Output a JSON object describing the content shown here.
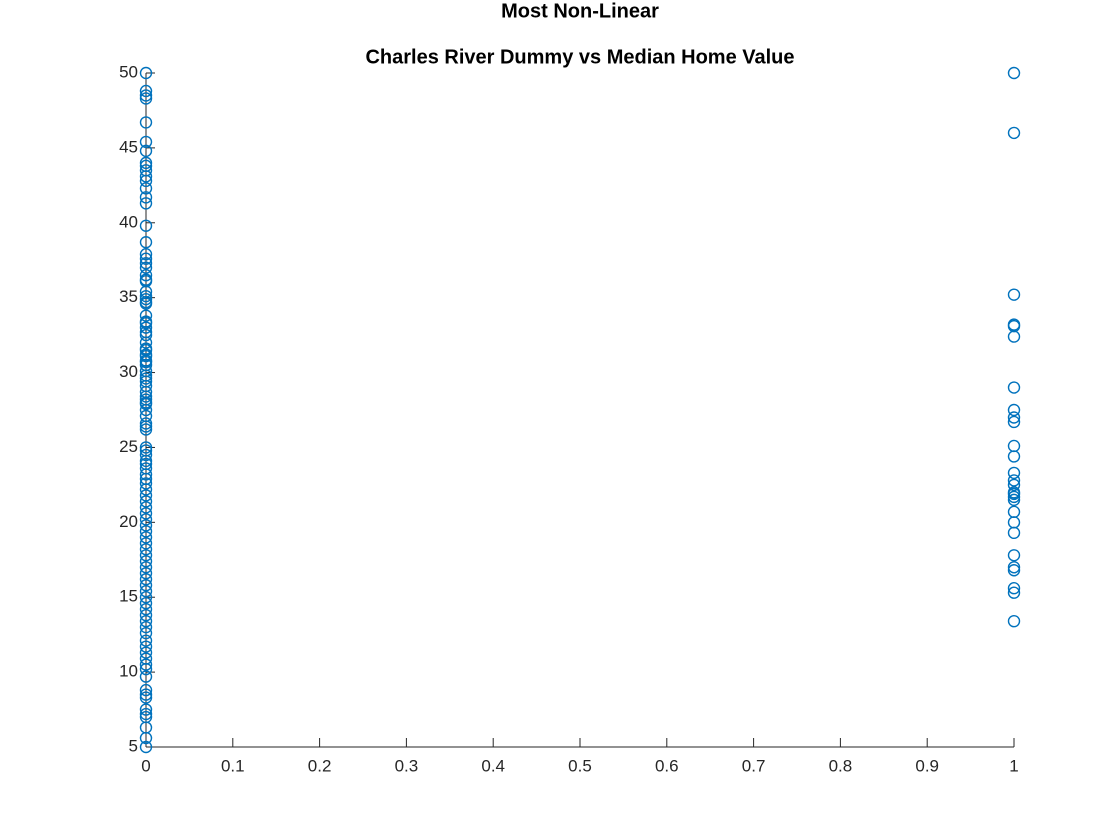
{
  "chart_data": {
    "type": "scatter",
    "title": "Most Non-Linear",
    "subtitle": "Charles River Dummy vs Median Home Value",
    "xlim": [
      0,
      1
    ],
    "xticks": [
      0,
      0.1,
      0.2,
      0.3,
      0.4,
      0.5,
      0.6,
      0.7,
      0.8,
      0.9,
      1
    ],
    "ylim": [
      5,
      50
    ],
    "yticks": [
      5,
      10,
      15,
      20,
      25,
      30,
      35,
      40,
      45,
      50
    ],
    "grid": false,
    "series": [
      {
        "color": "#0072bd",
        "x": [
          0,
          0,
          0,
          0,
          0,
          0,
          0,
          0,
          0,
          0,
          0,
          0,
          0,
          0,
          0,
          0,
          0,
          0,
          0,
          0,
          0,
          0,
          0,
          0,
          0,
          0,
          0,
          0,
          0,
          0,
          0,
          0,
          0,
          0,
          0,
          0,
          0,
          0,
          0,
          0,
          0,
          0,
          0,
          0,
          0,
          0,
          0,
          0,
          0,
          0,
          0,
          0,
          0,
          0,
          0,
          0,
          0,
          0,
          0,
          0,
          0,
          0,
          0,
          0,
          0,
          0,
          0,
          0,
          0,
          0,
          0,
          0,
          0,
          0,
          0,
          0,
          0,
          0,
          0,
          0,
          0,
          0,
          0,
          0,
          0,
          0,
          0,
          0,
          0,
          0,
          0,
          0,
          0,
          0,
          0,
          0,
          0,
          0,
          0,
          0,
          0,
          0,
          0,
          0,
          0,
          0,
          0,
          0
        ],
        "y": [
          50,
          48.8,
          48.5,
          48.3,
          46.7,
          45.4,
          44.8,
          44,
          43.8,
          43.5,
          43.1,
          42.8,
          42.3,
          41.7,
          41.3,
          39.8,
          38.7,
          37.9,
          37.6,
          37.3,
          37,
          36.5,
          36.2,
          36.1,
          35.4,
          35.1,
          34.9,
          34.7,
          34.6,
          33.8,
          33.4,
          33.3,
          33,
          32.7,
          32.5,
          32,
          31.6,
          31.5,
          31.2,
          31.1,
          30.8,
          30.7,
          30.5,
          30.1,
          29.8,
          29.6,
          29.4,
          29.1,
          28.7,
          28.4,
          28.2,
          28,
          27.9,
          27.5,
          27.1,
          26.6,
          26.4,
          26.2,
          25,
          24.8,
          24.5,
          24.1,
          23.9,
          23.6,
          23.2,
          22.9,
          22.6,
          22.2,
          21.8,
          21.4,
          21,
          20.6,
          20.2,
          19.8,
          19.4,
          19,
          18.6,
          18.2,
          17.8,
          17.4,
          17,
          16.6,
          16.2,
          15.8,
          15.4,
          15,
          14.6,
          14.2,
          13.8,
          13.4,
          13,
          12.6,
          12.1,
          11.7,
          11.3,
          10.9,
          10.5,
          10.2,
          9.7,
          8.8,
          8.5,
          8.3,
          7.5,
          7.2,
          7,
          6.3,
          5.6,
          5
        ]
      },
      {
        "color": "#0072bd",
        "x": [
          1,
          1,
          1,
          1,
          1,
          1,
          1,
          1,
          1,
          1,
          1,
          1,
          1,
          1,
          1,
          1,
          1,
          1,
          1,
          1,
          1,
          1,
          1,
          1,
          1,
          1,
          1,
          1
        ],
        "y": [
          50,
          46,
          35.2,
          33.2,
          33.1,
          32.4,
          29,
          27.5,
          27,
          26.7,
          25.1,
          24.4,
          23.3,
          22.8,
          22.5,
          22,
          21.9,
          21.7,
          21.5,
          20.7,
          20,
          19.3,
          17.8,
          17,
          16.8,
          15.6,
          15.3,
          13.4
        ]
      }
    ]
  }
}
